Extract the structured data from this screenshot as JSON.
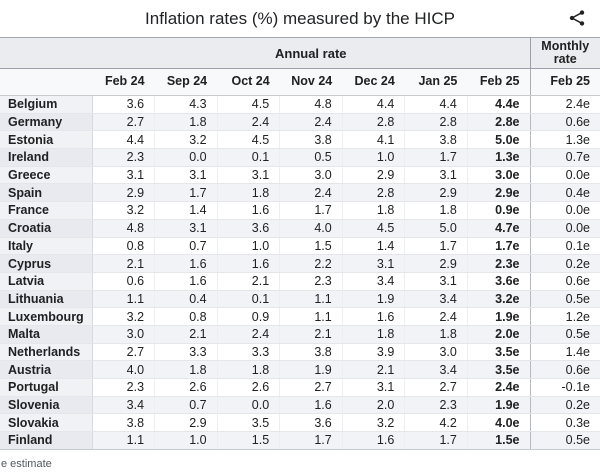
{
  "title": "Inflation rates (%) measured by the HICP",
  "share_icon": "share-icon",
  "footnote": "e estimate",
  "colors": {
    "header_bg": "#eaecf0",
    "month_row_bg": "#f8f9fa",
    "stripe_bg": "#f2f3f6",
    "border_dark": "#a2a9b1",
    "border_light": "#e4e6ea",
    "text": "#202122",
    "footnote_text": "#54595d"
  },
  "table": {
    "annual_label": "Annual rate",
    "monthly_label": "Monthly rate",
    "columns": [
      "Feb 24",
      "Sep 24",
      "Oct 24",
      "Nov 24",
      "Dec 24",
      "Jan 25",
      "Feb 25"
    ],
    "monthly_column": "Feb 25",
    "rows": [
      {
        "country": "Belgium",
        "values": [
          "3.6",
          "4.3",
          "4.5",
          "4.8",
          "4.4",
          "4.4",
          "4.4e"
        ],
        "monthly": "2.4e"
      },
      {
        "country": "Germany",
        "values": [
          "2.7",
          "1.8",
          "2.4",
          "2.4",
          "2.8",
          "2.8",
          "2.8e"
        ],
        "monthly": "0.6e"
      },
      {
        "country": "Estonia",
        "values": [
          "4.4",
          "3.2",
          "4.5",
          "3.8",
          "4.1",
          "3.8",
          "5.0e"
        ],
        "monthly": "1.3e"
      },
      {
        "country": "Ireland",
        "values": [
          "2.3",
          "0.0",
          "0.1",
          "0.5",
          "1.0",
          "1.7",
          "1.3e"
        ],
        "monthly": "0.7e"
      },
      {
        "country": "Greece",
        "values": [
          "3.1",
          "3.1",
          "3.1",
          "3.0",
          "2.9",
          "3.1",
          "3.0e"
        ],
        "monthly": "0.0e"
      },
      {
        "country": "Spain",
        "values": [
          "2.9",
          "1.7",
          "1.8",
          "2.4",
          "2.8",
          "2.9",
          "2.9e"
        ],
        "monthly": "0.4e"
      },
      {
        "country": "France",
        "values": [
          "3.2",
          "1.4",
          "1.6",
          "1.7",
          "1.8",
          "1.8",
          "0.9e"
        ],
        "monthly": "0.0e"
      },
      {
        "country": "Croatia",
        "values": [
          "4.8",
          "3.1",
          "3.6",
          "4.0",
          "4.5",
          "5.0",
          "4.7e"
        ],
        "monthly": "0.0e"
      },
      {
        "country": "Italy",
        "values": [
          "0.8",
          "0.7",
          "1.0",
          "1.5",
          "1.4",
          "1.7",
          "1.7e"
        ],
        "monthly": "0.1e"
      },
      {
        "country": "Cyprus",
        "values": [
          "2.1",
          "1.6",
          "1.6",
          "2.2",
          "3.1",
          "2.9",
          "2.3e"
        ],
        "monthly": "0.2e"
      },
      {
        "country": "Latvia",
        "values": [
          "0.6",
          "1.6",
          "2.1",
          "2.3",
          "3.4",
          "3.1",
          "3.6e"
        ],
        "monthly": "0.6e"
      },
      {
        "country": "Lithuania",
        "values": [
          "1.1",
          "0.4",
          "0.1",
          "1.1",
          "1.9",
          "3.4",
          "3.2e"
        ],
        "monthly": "0.5e"
      },
      {
        "country": "Luxembourg",
        "values": [
          "3.2",
          "0.8",
          "0.9",
          "1.1",
          "1.6",
          "2.4",
          "1.9e"
        ],
        "monthly": "1.2e"
      },
      {
        "country": "Malta",
        "values": [
          "3.0",
          "2.1",
          "2.4",
          "2.1",
          "1.8",
          "1.8",
          "2.0e"
        ],
        "monthly": "0.5e"
      },
      {
        "country": "Netherlands",
        "values": [
          "2.7",
          "3.3",
          "3.3",
          "3.8",
          "3.9",
          "3.0",
          "3.5e"
        ],
        "monthly": "1.4e"
      },
      {
        "country": "Austria",
        "values": [
          "4.0",
          "1.8",
          "1.8",
          "1.9",
          "2.1",
          "3.4",
          "3.5e"
        ],
        "monthly": "0.6e"
      },
      {
        "country": "Portugal",
        "values": [
          "2.3",
          "2.6",
          "2.6",
          "2.7",
          "3.1",
          "2.7",
          "2.4e"
        ],
        "monthly": "-0.1e"
      },
      {
        "country": "Slovenia",
        "values": [
          "3.4",
          "0.7",
          "0.0",
          "1.6",
          "2.0",
          "2.3",
          "1.9e"
        ],
        "monthly": "0.2e"
      },
      {
        "country": "Slovakia",
        "values": [
          "3.8",
          "2.9",
          "3.5",
          "3.6",
          "3.2",
          "4.2",
          "4.0e"
        ],
        "monthly": "0.3e"
      },
      {
        "country": "Finland",
        "values": [
          "1.1",
          "1.0",
          "1.5",
          "1.7",
          "1.6",
          "1.7",
          "1.5e"
        ],
        "monthly": "0.5e"
      }
    ]
  }
}
